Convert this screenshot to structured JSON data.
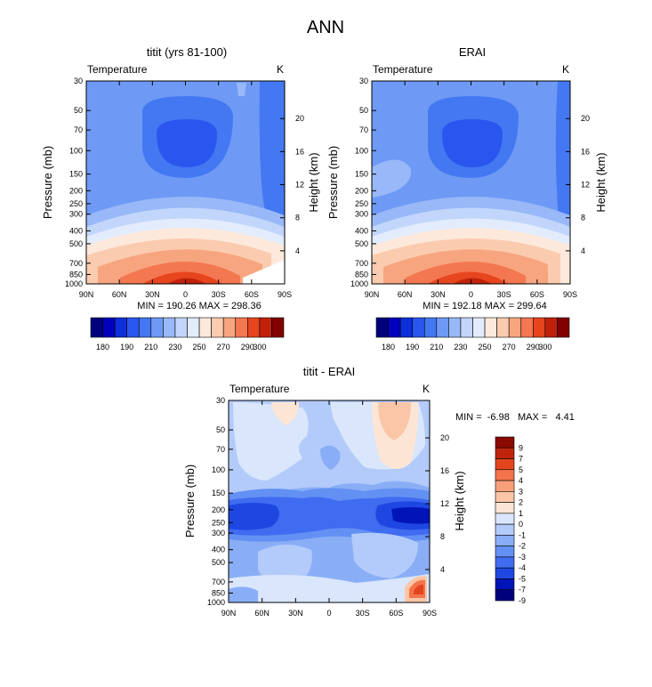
{
  "figure": {
    "main_title": "ANN"
  },
  "chart_data": [
    {
      "type": "heatmap",
      "title": "titit (yrs 81-100)",
      "variable_label": "Temperature",
      "units_label": "K",
      "xlabel": "",
      "ylabel": "Pressure (mb)",
      "y2label": "Height (km)",
      "x_ticks": [
        "90N",
        "60N",
        "30N",
        "0",
        "30S",
        "60S",
        "90S"
      ],
      "x_tick_values": [
        90,
        60,
        30,
        0,
        -30,
        -60,
        -90
      ],
      "y_ticks": [
        30,
        50,
        70,
        100,
        150,
        200,
        250,
        300,
        400,
        500,
        700,
        850,
        1000
      ],
      "y_scale": "log",
      "y_reversed": true,
      "y2_ticks": [
        20,
        16,
        12,
        8,
        4
      ],
      "stats": "MIN = 190.26   MAX = 298.36",
      "min": 190.26,
      "max": 298.36,
      "colorbar_labels": [
        "180",
        "190",
        "210",
        "230",
        "250",
        "270",
        "290",
        "300"
      ],
      "colorbar_levels": [
        180,
        185,
        190,
        200,
        210,
        220,
        230,
        240,
        250,
        260,
        270,
        280,
        290,
        295,
        300
      ]
    },
    {
      "type": "heatmap",
      "title": "ERAI",
      "variable_label": "Temperature",
      "units_label": "K",
      "xlabel": "",
      "ylabel": "Pressure (mb)",
      "y2label": "Height (km)",
      "x_ticks": [
        "90N",
        "60N",
        "30N",
        "0",
        "30S",
        "60S",
        "90S"
      ],
      "x_tick_values": [
        90,
        60,
        30,
        0,
        -30,
        -60,
        -90
      ],
      "y_ticks": [
        30,
        50,
        70,
        100,
        150,
        200,
        250,
        300,
        400,
        500,
        700,
        850,
        1000
      ],
      "y_scale": "log",
      "y_reversed": true,
      "y2_ticks": [
        20,
        16,
        12,
        8,
        4
      ],
      "stats": "MIN = 192.18   MAX = 299.64",
      "min": 192.18,
      "max": 299.64,
      "colorbar_labels": [
        "180",
        "190",
        "210",
        "230",
        "250",
        "270",
        "290",
        "300"
      ],
      "colorbar_levels": [
        180,
        185,
        190,
        200,
        210,
        220,
        230,
        240,
        250,
        260,
        270,
        280,
        290,
        295,
        300
      ]
    },
    {
      "type": "heatmap",
      "title": "titit - ERAI",
      "variable_label": "Temperature",
      "units_label": "K",
      "xlabel": "",
      "ylabel": "Pressure (mb)",
      "y2label": "Height (km)",
      "x_ticks": [
        "90N",
        "60N",
        "30N",
        "0",
        "30S",
        "60S",
        "90S"
      ],
      "x_tick_values": [
        90,
        60,
        30,
        0,
        -30,
        -60,
        -90
      ],
      "y_ticks": [
        30,
        50,
        70,
        100,
        150,
        200,
        250,
        300,
        400,
        500,
        700,
        850,
        1000
      ],
      "y_scale": "log",
      "y_reversed": true,
      "y2_ticks": [
        20,
        16,
        12,
        8,
        4
      ],
      "stats": "MIN =  -6.98   MAX =   4.41",
      "min": -6.98,
      "max": 4.41,
      "colorbar_labels": [
        "9",
        "7",
        "5",
        "4",
        "3",
        "2",
        "1",
        "0",
        "-1",
        "-2",
        "-3",
        "-4",
        "-5",
        "-7",
        "-9"
      ],
      "colorbar_levels": [
        -9,
        -7,
        -5,
        -4,
        -3,
        -2,
        -1,
        0,
        1,
        2,
        3,
        4,
        5,
        7,
        9
      ]
    }
  ],
  "colors": {
    "abs_scale": [
      "#00007d",
      "#0000bd",
      "#0d2ed9",
      "#2a56ef",
      "#4478f2",
      "#6e9af5",
      "#98b8f7",
      "#c2d6fb",
      "#e2ecfd",
      "#fde9dc",
      "#fbcbaf",
      "#f7a57f",
      "#f37751",
      "#e6451e",
      "#c1210a",
      "#820000"
    ],
    "diff_scale": [
      "#00007d",
      "#0014b8",
      "#1e47e2",
      "#3f6cf0",
      "#6390f3",
      "#8aaef6",
      "#b3cbfa",
      "#d9e6fc",
      "#fde5d6",
      "#fbc6a8",
      "#f7a079",
      "#f3744b",
      "#e3461f",
      "#c0240c",
      "#8a0a00"
    ]
  }
}
